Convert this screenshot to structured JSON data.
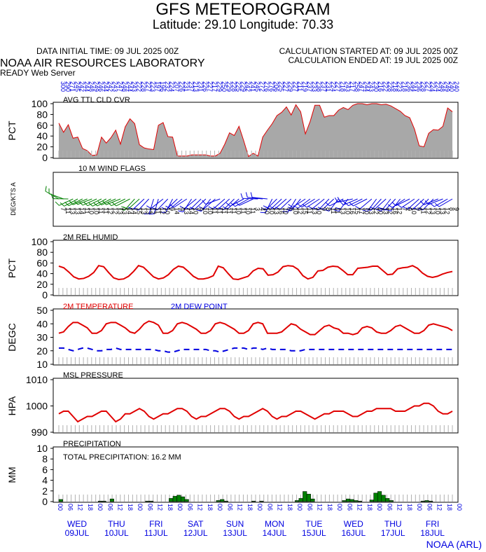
{
  "header": {
    "title": "GFS METEOROGRAM",
    "location": "Latitude: 29.10 Longitude:  70.33",
    "data_initial_time": "DATA INITIAL TIME: 09 JUL 2025 00Z",
    "calc_started": "CALCULATION STARTED AT: 09 JUL 2025 00Z",
    "calc_ended": "CALCULATION ENDED AT: 19 JUL 2025 00Z",
    "lab": "NOAA AIR RESOURCES LABORATORY",
    "server": "READY Web Server",
    "footer": "NOAA (ARL)"
  },
  "colors": {
    "red": "#e00000",
    "blue": "#0000e0",
    "green": "#008000",
    "gray": "#a8a8a8",
    "frame": "#000000"
  },
  "chart_data": [
    {
      "type": "area",
      "title": "AVG TTL CLD CVR",
      "ylabel": "PCT",
      "ylim": [
        0,
        100
      ],
      "yticks": [
        0,
        20,
        40,
        60,
        80,
        100
      ],
      "values": [
        64,
        47,
        61,
        36,
        38,
        17,
        13,
        4,
        5,
        38,
        27,
        37,
        51,
        25,
        57,
        72,
        63,
        24,
        18,
        16,
        15,
        60,
        65,
        39,
        38,
        3,
        3,
        3,
        5,
        5,
        5,
        5,
        3,
        3,
        8,
        25,
        46,
        41,
        58,
        31,
        2,
        8,
        3,
        38,
        51,
        63,
        78,
        84,
        94,
        79,
        98,
        85,
        44,
        67,
        97,
        97,
        75,
        78,
        78,
        88,
        93,
        89,
        97,
        100,
        100,
        98,
        100,
        100,
        98,
        99,
        96,
        91,
        86,
        78,
        74,
        53,
        22,
        20,
        45,
        52,
        51,
        58,
        92,
        85
      ]
    },
    {
      "type": "wind",
      "title": "10 M  WIND FLAGS",
      "ylabel": "DEG/KTS  A",
      "direction_labels": [
        "300",
        "290",
        "271",
        "245",
        "242",
        "244",
        "248",
        "249",
        "246",
        "244",
        "242",
        "243",
        "247",
        "248",
        "244",
        "243",
        "222",
        "228",
        "227",
        "223",
        "197",
        "196",
        "232",
        "224",
        "207",
        "226",
        "231",
        "237",
        "213",
        "231",
        "226",
        "227",
        "217",
        "229",
        "250",
        "229",
        "228",
        "225",
        "229",
        "242",
        "241",
        "245",
        "272",
        "276",
        "276",
        "206",
        "225",
        "227",
        "229",
        "227",
        "211",
        "219",
        "237",
        "233",
        "238",
        "237",
        "231",
        "224",
        "227",
        "218",
        "243",
        "217",
        "258",
        "247",
        "244",
        "243",
        "230",
        "216",
        "222",
        "228",
        "218",
        "223",
        "218",
        "236",
        "244",
        "236",
        "228",
        "227",
        "224",
        "224",
        "248",
        "249",
        "240",
        "240"
      ],
      "speed_labels": [
        "7",
        "11",
        "13",
        "13",
        "14",
        "11",
        "10",
        "10",
        "11",
        "11",
        "12",
        "12",
        "13",
        "13",
        "14",
        "14",
        "15",
        "13",
        "13",
        "12",
        "11",
        "12",
        "10",
        "9",
        "14",
        "9",
        "13",
        "14",
        "10",
        "9",
        "10",
        "10",
        "11",
        "11",
        "11",
        "11",
        "11",
        "10",
        "11",
        "10",
        "11",
        "3",
        "4",
        "10",
        "10",
        "13",
        "16",
        "10",
        "8",
        "10",
        "12",
        "15",
        "11",
        "13",
        "10",
        "9",
        "8",
        "11",
        "11",
        "13",
        "10",
        "16",
        "15",
        "17",
        "10",
        "13",
        "12",
        "10",
        "13",
        "12",
        "16",
        "12",
        "7",
        "9",
        "10",
        "9",
        "11",
        "12",
        "13",
        "10",
        "13",
        "12",
        "8",
        "9"
      ]
    },
    {
      "type": "line",
      "title": "2M REL HUMID",
      "ylabel": "PCT",
      "ylim": [
        0,
        100
      ],
      "yticks": [
        0,
        20,
        40,
        60,
        80,
        100
      ],
      "values": [
        54,
        51,
        43,
        34,
        30,
        31,
        35,
        42,
        55,
        53,
        42,
        32,
        29,
        30,
        35,
        44,
        55,
        52,
        43,
        34,
        30,
        32,
        38,
        48,
        54,
        52,
        44,
        35,
        30,
        30,
        32,
        36,
        54,
        51,
        40,
        30,
        29,
        32,
        35,
        45,
        50,
        49,
        37,
        38,
        43,
        53,
        55,
        54,
        48,
        36,
        30,
        33,
        45,
        46,
        52,
        54,
        53,
        46,
        38,
        38,
        50,
        51,
        52,
        54,
        54,
        46,
        38,
        39,
        49,
        51,
        52,
        55,
        50,
        41,
        35,
        33,
        35,
        39,
        42,
        44
      ]
    },
    {
      "type": "line",
      "title": "2M TEMPERATURE",
      "title2": "2M   DEW POINT",
      "ylabel": "DEGC",
      "ylim": [
        10,
        50
      ],
      "yticks": [
        10,
        20,
        30,
        40,
        50
      ],
      "series": [
        {
          "name": "2M TEMPERATURE",
          "values": [
            33,
            34,
            38,
            41,
            41,
            39,
            37,
            33,
            33,
            35,
            40,
            41,
            41,
            39,
            37,
            34,
            33,
            36,
            40,
            42,
            41,
            39,
            33,
            33,
            35,
            40,
            41,
            40,
            38,
            36,
            33,
            33,
            35,
            40,
            41,
            40,
            38,
            36,
            33,
            33,
            35,
            40,
            41,
            40,
            33,
            33,
            33,
            34,
            37,
            40,
            39,
            36,
            34,
            32,
            32,
            35,
            38,
            39,
            37,
            36,
            33,
            33,
            32,
            33,
            37,
            38,
            37,
            34,
            33,
            33,
            35,
            38,
            39,
            37,
            35,
            33,
            33,
            35,
            39,
            40,
            39,
            38,
            37,
            35
          ]
        },
        {
          "name": "2M   DEW POINT",
          "values": [
            22,
            22,
            21,
            20,
            21,
            22,
            22,
            21,
            20,
            20,
            21,
            21,
            22,
            21,
            21,
            21,
            21,
            21,
            21,
            21,
            21,
            20,
            20,
            19,
            19,
            20,
            21,
            21,
            21,
            21,
            21,
            21,
            20,
            20,
            19,
            20,
            21,
            22,
            22,
            22,
            21,
            22,
            22,
            21,
            22,
            21,
            21,
            21,
            21,
            20,
            20,
            20,
            21,
            21,
            21,
            21,
            21,
            21,
            21,
            21,
            21,
            21,
            21,
            21,
            21,
            21,
            21,
            21,
            21,
            21,
            21,
            21,
            21,
            21,
            21,
            21,
            21,
            21,
            21,
            21,
            21,
            21,
            21,
            21
          ]
        }
      ]
    },
    {
      "type": "line",
      "title": "MSL PRESSURE",
      "ylabel": "HPA",
      "ylim": [
        990,
        1010
      ],
      "yticks": [
        990,
        1000,
        1010
      ],
      "values": [
        997,
        998,
        998,
        996,
        994,
        995,
        996,
        996,
        997,
        998,
        998,
        996,
        994,
        995,
        997,
        997,
        998,
        999,
        998,
        996,
        995,
        996,
        997,
        997,
        998,
        999,
        999,
        998,
        996,
        995,
        996,
        996,
        997,
        998,
        999,
        999,
        998,
        996,
        995,
        996,
        996,
        997,
        998,
        999,
        998,
        996,
        995,
        996,
        996,
        997,
        998,
        998,
        997,
        996,
        995,
        996,
        997,
        997,
        998,
        998,
        998,
        997,
        996,
        996,
        997,
        998,
        998,
        999,
        999,
        999,
        999,
        998,
        998,
        998,
        999,
        1000,
        1000,
        1001,
        1001,
        1000,
        998,
        997,
        997,
        998
      ]
    },
    {
      "type": "bar",
      "title": "PRECIPITATION",
      "annotation": "TOTAL PRECIPITATION:  16.2 MM",
      "ylabel": "MM",
      "ylim": [
        0,
        10
      ],
      "yticks": [
        0,
        2,
        4,
        6,
        8,
        10
      ],
      "values": [
        0.4,
        0,
        0,
        0,
        0,
        0,
        0,
        0,
        0,
        0,
        0.1,
        0.1,
        0,
        0.5,
        0,
        0,
        0,
        0,
        0,
        0,
        0,
        0,
        0.1,
        0.1,
        0,
        0,
        0,
        0,
        0.6,
        1.0,
        1.2,
        0.9,
        0.4,
        0,
        0,
        0,
        0,
        0,
        0,
        0,
        0.2,
        0.4,
        0.1,
        0,
        0,
        0,
        0,
        0,
        0,
        0.1,
        0,
        0.1,
        0,
        0,
        0,
        0,
        0,
        0,
        0,
        0,
        0.2,
        0.6,
        1.9,
        1.4,
        0.5,
        0,
        0,
        0,
        0,
        0,
        0,
        0,
        0.2,
        0.5,
        0.4,
        0.2,
        0.1,
        0,
        0,
        0.3,
        1.6,
        1.9,
        1.2,
        0.6,
        0.2,
        0,
        0,
        0,
        0,
        0,
        0,
        0,
        0.1,
        0.2,
        0.1,
        0,
        0,
        0,
        0,
        0
      ],
      "hour_labels": [
        "00",
        "06",
        "12",
        "18",
        "00",
        "06",
        "12",
        "18",
        "00",
        "06",
        "12",
        "18",
        "00",
        "06",
        "12",
        "18",
        "00",
        "06",
        "12",
        "18",
        "00",
        "06",
        "12",
        "18",
        "00",
        "06",
        "12",
        "18",
        "00",
        "06",
        "12",
        "18",
        "00",
        "06",
        "12",
        "18",
        "00",
        "06",
        "12",
        "18",
        "00"
      ],
      "days": [
        {
          "day": "WED",
          "date": "09JUL"
        },
        {
          "day": "THU",
          "date": "10JUL"
        },
        {
          "day": "FRI",
          "date": "11JUL"
        },
        {
          "day": "SAT",
          "date": "12JUL"
        },
        {
          "day": "SUN",
          "date": "13JUL"
        },
        {
          "day": "MON",
          "date": "14JUL"
        },
        {
          "day": "TUE",
          "date": "15JUL"
        },
        {
          "day": "WED",
          "date": "16JUL"
        },
        {
          "day": "THU",
          "date": "17JUL"
        },
        {
          "day": "FRI",
          "date": "18JUL"
        }
      ]
    }
  ]
}
